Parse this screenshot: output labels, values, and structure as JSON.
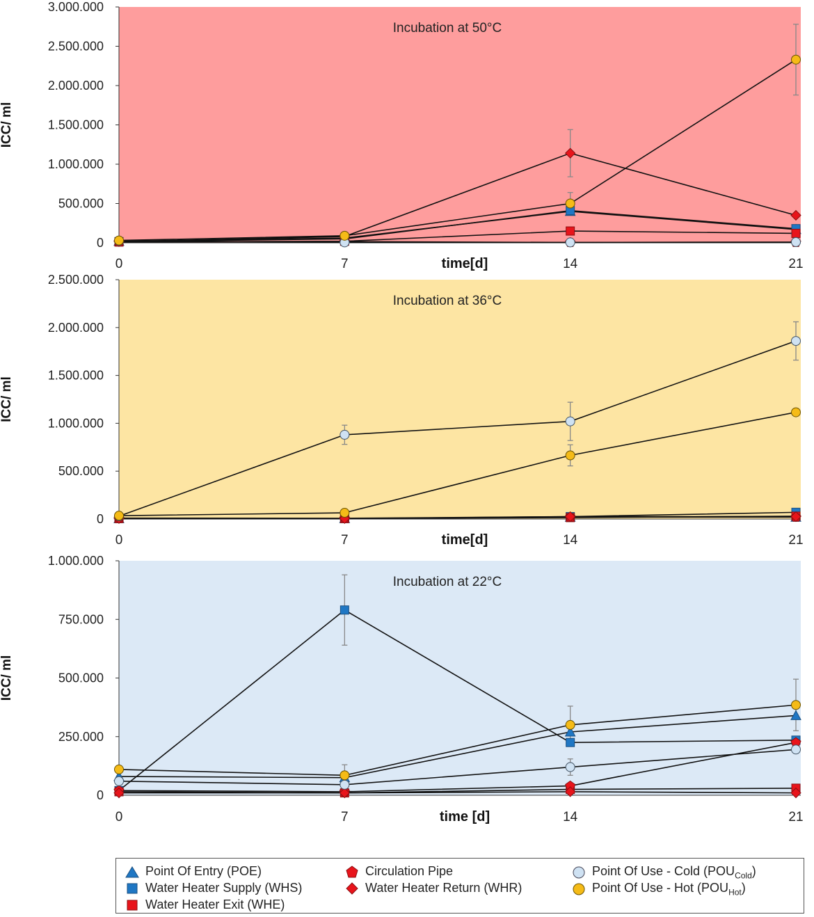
{
  "chart_data": [
    {
      "type": "line",
      "title": "Incubation at 50°C",
      "background": "#fe9d9d",
      "xlabel": "time[d]",
      "ylabel": "ICC/ ml",
      "x": [
        0,
        7,
        14,
        21
      ],
      "x_tick_labels": [
        "0",
        "7",
        "14",
        "21"
      ],
      "ylim": [
        0,
        3000000
      ],
      "y_ticks": [
        0,
        500000,
        1000000,
        1500000,
        2000000,
        2500000,
        3000000
      ],
      "y_tick_labels": [
        "0",
        "500.000",
        "1.000.000",
        "1.500.000",
        "2.000.000",
        "2.500.000",
        "3.000.000"
      ],
      "series": [
        {
          "name": "Point Of Entry (POE)",
          "values": [
            20000,
            60000,
            400000,
            170000
          ]
        },
        {
          "name": "Water Heater Supply (WHS)",
          "values": [
            15000,
            50000,
            410000,
            180000
          ]
        },
        {
          "name": "Water Heater Exit (WHE)",
          "values": [
            10000,
            20000,
            150000,
            120000
          ]
        },
        {
          "name": "Circulation Pipe",
          "values": [
            12000,
            15000,
            5000,
            5000
          ]
        },
        {
          "name": "Water Heater Return (WHR)",
          "values": [
            15000,
            80000,
            1140000,
            350000
          ],
          "errors": [
            0,
            0,
            300000,
            0
          ]
        },
        {
          "name": "Point Of Use - Cold (POUCold)",
          "values": [
            25000,
            5000,
            5000,
            10000
          ]
        },
        {
          "name": "Point Of Use - Hot (POUHot)",
          "values": [
            30000,
            90000,
            500000,
            2330000
          ],
          "errors": [
            0,
            0,
            140000,
            450000
          ]
        }
      ]
    },
    {
      "type": "line",
      "title": "Incubation at 36°C",
      "background": "#fde5a3",
      "xlabel": "time[d]",
      "ylabel": "ICC/ ml",
      "x": [
        0,
        7,
        14,
        21
      ],
      "x_tick_labels": [
        "0",
        "7",
        "14",
        "21"
      ],
      "ylim": [
        0,
        2500000
      ],
      "y_ticks": [
        0,
        500000,
        1000000,
        1500000,
        2000000,
        2500000
      ],
      "y_tick_labels": [
        "0",
        "500.000",
        "1.000.000",
        "1.500.000",
        "2.000.000",
        "2.500.000"
      ],
      "series": [
        {
          "name": "Point Of Entry (POE)",
          "values": [
            5000,
            5000,
            20000,
            20000
          ]
        },
        {
          "name": "Water Heater Supply (WHS)",
          "values": [
            10000,
            8000,
            25000,
            70000
          ]
        },
        {
          "name": "Water Heater Exit (WHE)",
          "values": [
            5000,
            5000,
            15000,
            30000
          ]
        },
        {
          "name": "Circulation Pipe",
          "values": [
            5000,
            5000,
            20000,
            20000
          ]
        },
        {
          "name": "Water Heater Return (WHR)",
          "values": [
            5000,
            5000,
            25000,
            25000
          ]
        },
        {
          "name": "Point Of Use - Cold (POUCold)",
          "values": [
            30000,
            880000,
            1020000,
            1860000
          ],
          "errors": [
            0,
            100000,
            200000,
            200000
          ]
        },
        {
          "name": "Point Of Use - Hot (POUHot)",
          "values": [
            35000,
            65000,
            665000,
            1115000
          ],
          "errors": [
            0,
            0,
            110000,
            0
          ]
        }
      ]
    },
    {
      "type": "line",
      "title": "Incubation at 22°C",
      "background": "#dce9f6",
      "xlabel": "time [d]",
      "ylabel": "ICC/ ml",
      "x": [
        0,
        7,
        14,
        21
      ],
      "x_tick_labels": [
        "0",
        "7",
        "14",
        "21"
      ],
      "ylim": [
        0,
        1000000
      ],
      "y_ticks": [
        0,
        250000,
        500000,
        750000,
        1000000
      ],
      "y_tick_labels": [
        "0",
        "250.000",
        "500.000",
        "750.000",
        "1.000.000"
      ],
      "series": [
        {
          "name": "Point Of Entry (POE)",
          "values": [
            80000,
            75000,
            270000,
            340000
          ]
        },
        {
          "name": "Water Heater Supply (WHS)",
          "values": [
            20000,
            790000,
            225000,
            235000
          ],
          "errors": [
            0,
            150000,
            0,
            0
          ]
        },
        {
          "name": "Water Heater Exit (WHE)",
          "values": [
            15000,
            10000,
            25000,
            30000
          ]
        },
        {
          "name": "Circulation Pipe",
          "values": [
            20000,
            15000,
            40000,
            225000
          ]
        },
        {
          "name": "Water Heater Return (WHR)",
          "values": [
            10000,
            10000,
            15000,
            10000
          ]
        },
        {
          "name": "Point Of Use - Cold (POUCold)",
          "values": [
            60000,
            45000,
            120000,
            195000
          ],
          "errors": [
            0,
            0,
            35000,
            0
          ]
        },
        {
          "name": "Point Of Use - Hot (POUHot)",
          "values": [
            110000,
            85000,
            300000,
            385000
          ],
          "errors": [
            0,
            45000,
            80000,
            110000
          ]
        }
      ]
    }
  ],
  "legend": {
    "items": [
      {
        "key": "poe",
        "label": "Point Of Entry (POE)"
      },
      {
        "key": "whs",
        "label": "Water Heater Supply (WHS)"
      },
      {
        "key": "whe",
        "label": "Water Heater Exit (WHE)"
      },
      {
        "key": "circ",
        "label": "Circulation Pipe"
      },
      {
        "key": "whr",
        "label": "Water Heater Return (WHR)"
      },
      {
        "key": "pouc",
        "label": "Point Of Use - Cold (POU",
        "sub": "Cold",
        "suffix": ")"
      },
      {
        "key": "pouh",
        "label": "Point Of Use - Hot (POU",
        "sub": "Hot",
        "suffix": ")"
      }
    ]
  },
  "colors": {
    "poe": "#1f77c4",
    "whs": "#1f77c4",
    "whe": "#e8141b",
    "circ": "#e8141b",
    "whr": "#e8141b",
    "pouc": "#cfe2f3",
    "pouh": "#f5bb17",
    "line": "#111111",
    "errorbar": "#888888"
  },
  "markers": {
    "poe": "triangle-marker",
    "whs": "square-marker",
    "whe": "square-marker",
    "circ": "pentagon-marker",
    "whr": "diamond-marker",
    "pouc": "circle-marker",
    "pouh": "circle-marker"
  }
}
